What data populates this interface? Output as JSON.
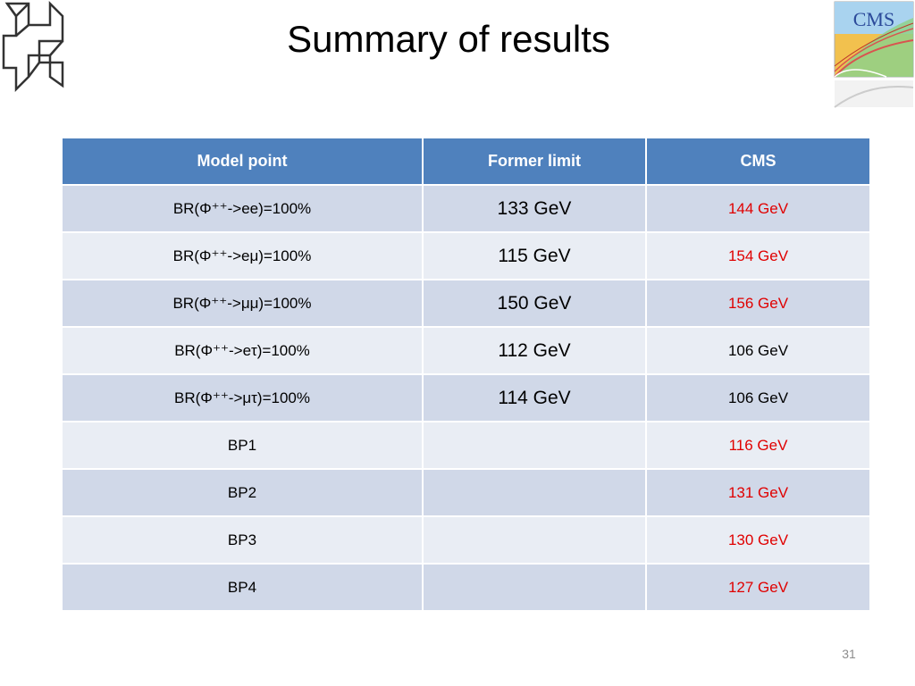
{
  "slide": {
    "title": "Summary of results",
    "page_number": "31",
    "cms_logo_text": "CMS"
  },
  "table": {
    "headers": [
      "Model point",
      "Former limit",
      "CMS"
    ],
    "rows": [
      {
        "model": "BR(Φ⁺⁺->ee)=100%",
        "former": "133 GeV",
        "cms": "144 GeV",
        "cms_highlight": true
      },
      {
        "model": "BR(Φ⁺⁺->eμ)=100%",
        "former": "115 GeV",
        "cms": "154 GeV",
        "cms_highlight": true
      },
      {
        "model": "BR(Φ⁺⁺->μμ)=100%",
        "former": "150 GeV",
        "cms": "156 GeV",
        "cms_highlight": true
      },
      {
        "model": "BR(Φ⁺⁺->eτ)=100%",
        "former": "112 GeV",
        "cms": "106 GeV",
        "cms_highlight": false
      },
      {
        "model": "BR(Φ⁺⁺->μτ)=100%",
        "former": "114 GeV",
        "cms": "106 GeV",
        "cms_highlight": false
      },
      {
        "model": "BP1",
        "former": "",
        "cms": "116 GeV",
        "cms_highlight": true
      },
      {
        "model": "BP2",
        "former": "",
        "cms": "131 GeV",
        "cms_highlight": true
      },
      {
        "model": "BP3",
        "former": "",
        "cms": "130 GeV",
        "cms_highlight": true
      },
      {
        "model": "BP4",
        "former": "",
        "cms": "127 GeV",
        "cms_highlight": true
      }
    ]
  },
  "colors": {
    "header_bg": "#4f81bd",
    "row_odd": "#d0d8e8",
    "row_even": "#e9edf4",
    "highlight_red": "#e00000"
  },
  "icons": {
    "left_logo": "institution-logo-icon",
    "right_logo": "cms-logo-icon"
  }
}
